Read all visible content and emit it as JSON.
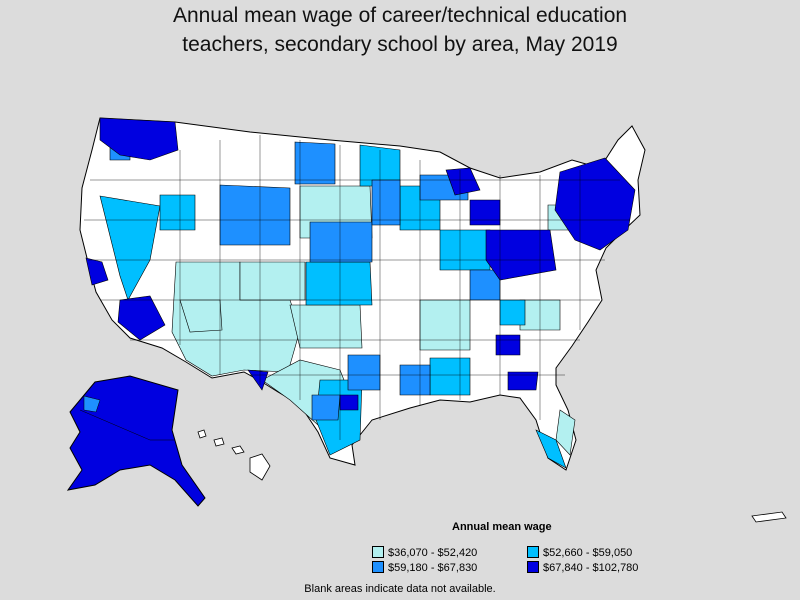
{
  "title_line1": "Annual mean wage of career/technical education",
  "title_line2": "teachers, secondary school by area, May 2019",
  "legend": {
    "title": "Annual mean wage",
    "items": [
      {
        "label": "$36,070 - $52,420",
        "color": "#b3f0f0"
      },
      {
        "label": "$52,660 - $59,050",
        "color": "#00bfff"
      },
      {
        "label": "$59,180 - $67,830",
        "color": "#1e90ff"
      },
      {
        "label": "$67,840 - $102,780",
        "color": "#0000e0"
      }
    ]
  },
  "note": "Blank areas indicate data not available.",
  "colors": {
    "background": "#dcdcdc",
    "no_data": "#ffffff",
    "border": "#000000"
  }
}
